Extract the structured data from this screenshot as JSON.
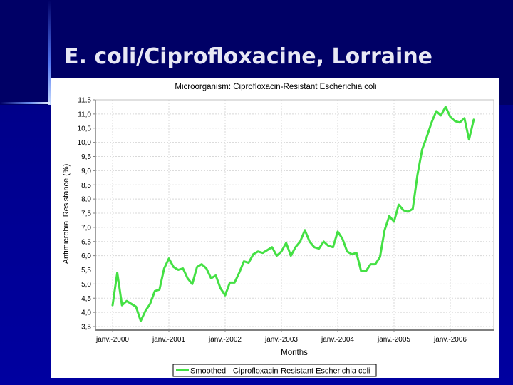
{
  "slide": {
    "title": "E. coli/Ciprofloxacine, Lorraine"
  },
  "colors": {
    "background_dark": "#000066",
    "background_light": "#0000a0",
    "series": "#44e044",
    "grid": "#d8d8d8",
    "axis": "#808080"
  },
  "chart_data": {
    "type": "line",
    "title": "Microorganism: Ciprofloxacin-Resistant Escherichia coli",
    "xlabel": "Months",
    "ylabel": "Antimicrobial Resistance  (%)",
    "ylim": [
      3.5,
      11.5
    ],
    "yticks": [
      "3,5",
      "4,0",
      "4,5",
      "5,0",
      "5,5",
      "6,0",
      "6,5",
      "7,0",
      "7,5",
      "8,0",
      "8,5",
      "9,0",
      "9,5",
      "10,0",
      "10,5",
      "11,0",
      "11,5"
    ],
    "xticks": [
      "janv.-2000",
      "janv.-2001",
      "janv.-2002",
      "janv.-2003",
      "janv.-2004",
      "janv.-2005",
      "janv.-2006"
    ],
    "grid": true,
    "legend_position": "bottom",
    "x_start": "janv.-2000",
    "x_step": "1 month",
    "series": [
      {
        "name": "Smoothed - Ciprofloxacin-Resistant Escherichia coli",
        "color": "#44e044",
        "values": [
          4.25,
          5.4,
          4.25,
          4.4,
          4.3,
          4.2,
          3.7,
          4.05,
          4.3,
          4.75,
          4.8,
          5.55,
          5.9,
          5.6,
          5.5,
          5.55,
          5.2,
          5.0,
          5.6,
          5.7,
          5.55,
          5.2,
          5.3,
          4.85,
          4.6,
          5.05,
          5.05,
          5.4,
          5.8,
          5.75,
          6.05,
          6.15,
          6.1,
          6.2,
          6.3,
          6.0,
          6.15,
          6.45,
          6.0,
          6.3,
          6.5,
          6.9,
          6.5,
          6.3,
          6.25,
          6.5,
          6.35,
          6.3,
          6.85,
          6.6,
          6.15,
          6.05,
          6.1,
          5.45,
          5.45,
          5.7,
          5.7,
          5.95,
          6.9,
          7.4,
          7.2,
          7.8,
          7.6,
          7.55,
          7.65,
          8.85,
          9.75,
          10.2,
          10.7,
          11.1,
          10.95,
          11.25,
          10.9,
          10.75,
          10.7,
          10.85,
          10.1,
          10.8
        ]
      }
    ]
  }
}
